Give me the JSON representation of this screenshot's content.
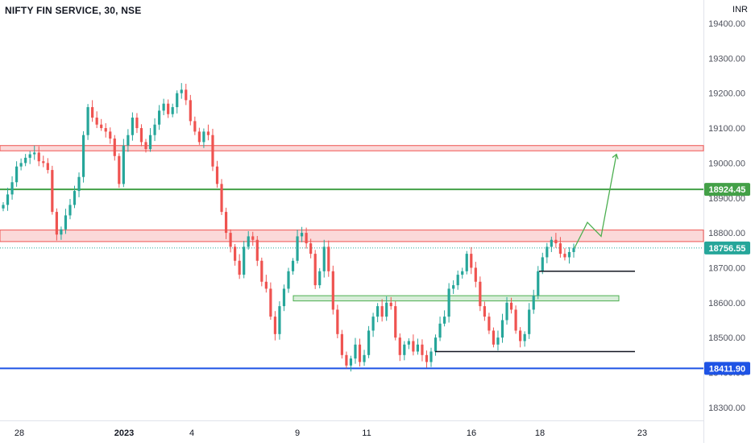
{
  "chart_title": "NIFTY FIN SERVICE, 30, NSE",
  "currency": "INR",
  "colors": {
    "up": "#26a69a",
    "down": "#ef5350",
    "resistance_zone": "#ef5350",
    "support_zone": "#4caf50",
    "green_line": "#43a047",
    "blue_line": "#1e53e5",
    "projection": "#4caf50",
    "black_line": "#131722"
  },
  "chart_data": {
    "type": "candlestick",
    "y_axis": {
      "ticks": [
        "19400.00",
        "19300.00",
        "19200.00",
        "19100.00",
        "19000.00",
        "18900.00",
        "18800.00",
        "18700.00",
        "18600.00",
        "18500.00",
        "18400.00",
        "18300.00"
      ],
      "ylim": [
        18260,
        19445
      ]
    },
    "x_axis": {
      "ticks": [
        "28",
        "2023",
        "4",
        "9",
        "11",
        "16",
        "18",
        "23"
      ]
    },
    "price_labels": [
      {
        "value": 18924.45,
        "text": "18924.45",
        "color": "#43a047"
      },
      {
        "value": 18756.55,
        "text": "18756.55",
        "color": "#26a69a"
      },
      {
        "value": 18411.9,
        "text": "18411.90",
        "color": "#1e53e5"
      }
    ],
    "zones": [
      {
        "kind": "resistance",
        "from": 19035,
        "to": 19050
      },
      {
        "kind": "resistance",
        "from": 18775,
        "to": 18808
      },
      {
        "kind": "support",
        "from": 18605,
        "to": 18620
      }
    ],
    "horizontal_lines": [
      {
        "value": 18924.45,
        "kind": "green"
      },
      {
        "value": 18411.9,
        "kind": "blue"
      }
    ],
    "trend_segments": [
      {
        "level": 18690
      },
      {
        "level": 18460
      }
    ],
    "closes": [
      18880,
      18910,
      18945,
      18990,
      19000,
      19015,
      19025,
      19030,
      19005,
      19000,
      18980,
      18860,
      18795,
      18810,
      18850,
      18880,
      18920,
      18960,
      19080,
      19160,
      19130,
      19110,
      19100,
      19090,
      19070,
      19020,
      18940,
      19050,
      19080,
      19130,
      19100,
      19060,
      19040,
      19080,
      19110,
      19150,
      19170,
      19140,
      19160,
      19200,
      19210,
      19180,
      19120,
      19090,
      19060,
      19090,
      19080,
      18990,
      18940,
      18860,
      18800,
      18760,
      18720,
      18680,
      18760,
      18790,
      18780,
      18720,
      18660,
      18640,
      18560,
      18510,
      18590,
      18640,
      18690,
      18720,
      18790,
      18800,
      18770,
      18740,
      18650,
      18690,
      18760,
      18690,
      18580,
      18510,
      18450,
      18420,
      18440,
      18480,
      18430,
      18450,
      18520,
      18560,
      18590,
      18560,
      18600,
      18590,
      18500,
      18450,
      18480,
      18490,
      18460,
      18480,
      18450,
      18430,
      18460,
      18500,
      18540,
      18560,
      18640,
      18650,
      18680,
      18690,
      18740,
      18700,
      18660,
      18590,
      18560,
      18520,
      18480,
      18500,
      18550,
      18600,
      18580,
      18520,
      18490,
      18510,
      18580,
      18620,
      18690,
      18730,
      18760,
      18780,
      18770,
      18740,
      18730,
      18745,
      18757
    ]
  }
}
